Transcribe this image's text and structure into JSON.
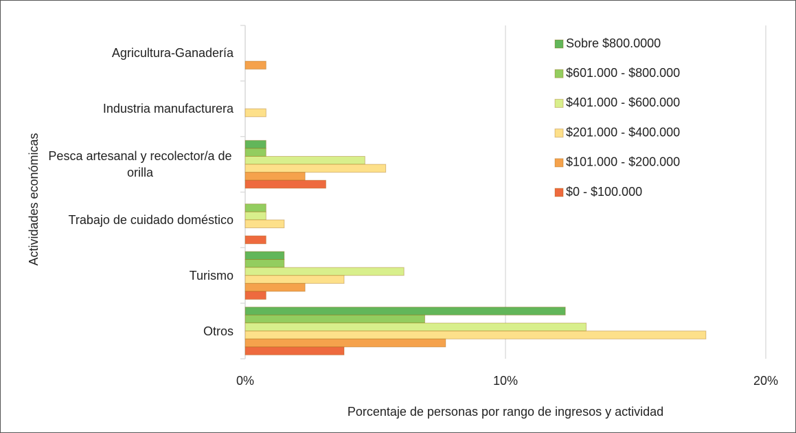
{
  "chart_data": {
    "type": "bar",
    "orientation": "horizontal",
    "y_label": "Actividades económicas",
    "x_label": "Porcentaje de personas por rango de ingresos y actividad",
    "categories": [
      "Agricultura-Ganadería",
      "Industria manufacturera",
      "Pesca artesanal y recolector/a de orilla",
      "Trabajo de cuidado doméstico",
      "Turismo",
      "Otros"
    ],
    "series": [
      {
        "name": "Sobre $800.0000",
        "color": "#62b65a",
        "values": [
          0,
          0,
          0.8,
          0,
          1.5,
          12.3
        ]
      },
      {
        "name": "$601.000 - $800.000",
        "color": "#93cd5f",
        "values": [
          0,
          0,
          0.8,
          0.8,
          1.5,
          6.9
        ]
      },
      {
        "name": "$401.000 - $600.000",
        "color": "#d8ef8c",
        "values": [
          0,
          0,
          4.6,
          0.8,
          6.1,
          13.1
        ]
      },
      {
        "name": "$201.000 - $400.000",
        "color": "#fde08a",
        "values": [
          0,
          0.8,
          5.4,
          1.5,
          3.8,
          17.7
        ]
      },
      {
        "name": "$101.000 - $200.000",
        "color": "#f5a24c",
        "values": [
          0.8,
          0,
          2.3,
          0,
          2.3,
          7.7
        ]
      },
      {
        "name": "$0 - $100.000",
        "color": "#ee6a3e",
        "values": [
          0,
          0,
          3.1,
          0.8,
          0.8,
          3.8
        ]
      }
    ],
    "xlim": [
      0,
      20
    ],
    "xticks": [
      {
        "value": 0,
        "label": "0%"
      },
      {
        "value": 10,
        "label": "10%"
      },
      {
        "value": 20,
        "label": "20%"
      }
    ],
    "grid": true,
    "legend": "upper right"
  }
}
